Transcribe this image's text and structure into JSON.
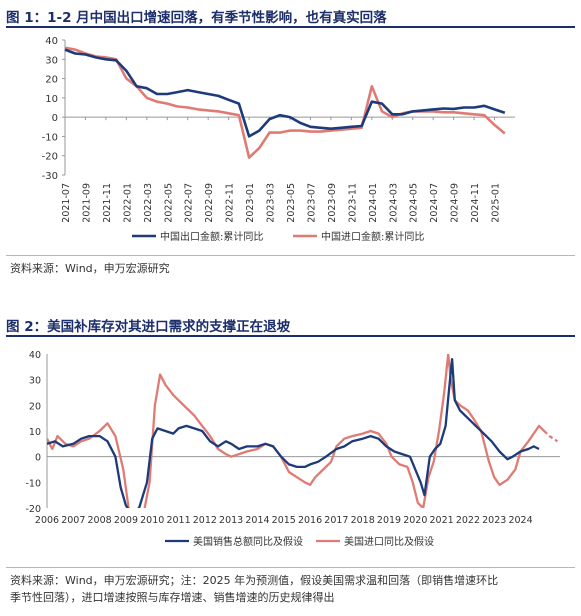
{
  "figure1": {
    "title": "图 1：1-2 月中国出口增速回落，有季节性影响，也有真实回落",
    "source": "资料来源：Wind，申万宏源研究",
    "chart_data": {
      "type": "line",
      "ylim": [
        -30,
        40
      ],
      "yticks": [
        -30,
        -20,
        -10,
        0,
        10,
        20,
        30,
        40
      ],
      "xtick_labels": [
        "2021-07",
        "2021-09",
        "2021-11",
        "2022-01",
        "2022-03",
        "2022-05",
        "2022-07",
        "2022-09",
        "2022-11",
        "2023-01",
        "2023-03",
        "2023-05",
        "2023-07",
        "2023-09",
        "2023-11",
        "2024-01",
        "2024-03",
        "2024-05",
        "2024-07",
        "2024-09",
        "2024-11",
        "2025-01"
      ],
      "legend_position": "bottom",
      "series": [
        {
          "name": "中国出口金额:累计同比",
          "color": "#1d3a7a",
          "points": [
            [
              "2021-07",
              35
            ],
            [
              "2021-08",
              33
            ],
            [
              "2021-09",
              32.5
            ],
            [
              "2021-10",
              31
            ],
            [
              "2021-11",
              30
            ],
            [
              "2021-12",
              29.5
            ],
            [
              "2022-01",
              24
            ],
            [
              "2022-02",
              16
            ],
            [
              "2022-03",
              15
            ],
            [
              "2022-04",
              12
            ],
            [
              "2022-05",
              12
            ],
            [
              "2022-06",
              13
            ],
            [
              "2022-07",
              14
            ],
            [
              "2022-08",
              13
            ],
            [
              "2022-09",
              12
            ],
            [
              "2022-10",
              11
            ],
            [
              "2022-11",
              9
            ],
            [
              "2022-12",
              7
            ],
            [
              "2023-01",
              -10
            ],
            [
              "2023-02",
              -7
            ],
            [
              "2023-03",
              -1
            ],
            [
              "2023-04",
              1
            ],
            [
              "2023-05",
              0
            ],
            [
              "2023-06",
              -3
            ],
            [
              "2023-07",
              -5
            ],
            [
              "2023-08",
              -5.5
            ],
            [
              "2023-09",
              -6
            ],
            [
              "2023-10",
              -5.5
            ],
            [
              "2023-11",
              -5
            ],
            [
              "2023-12",
              -4.6
            ],
            [
              "2024-01",
              8
            ],
            [
              "2024-02",
              7
            ],
            [
              "2024-03",
              1.5
            ],
            [
              "2024-04",
              1.5
            ],
            [
              "2024-05",
              3
            ],
            [
              "2024-06",
              3.5
            ],
            [
              "2024-07",
              4
            ],
            [
              "2024-08",
              4.5
            ],
            [
              "2024-09",
              4.3
            ],
            [
              "2024-10",
              5
            ],
            [
              "2024-11",
              5
            ],
            [
              "2024-12",
              5.9
            ],
            [
              "2025-01",
              4
            ],
            [
              "2025-02",
              2.3
            ]
          ]
        },
        {
          "name": "中国进口金额:累计同比",
          "color": "#e07b74",
          "points": [
            [
              "2021-07",
              36
            ],
            [
              "2021-08",
              35
            ],
            [
              "2021-09",
              33
            ],
            [
              "2021-10",
              31.5
            ],
            [
              "2021-11",
              31
            ],
            [
              "2021-12",
              30
            ],
            [
              "2022-01",
              20
            ],
            [
              "2022-02",
              16
            ],
            [
              "2022-03",
              10
            ],
            [
              "2022-04",
              8
            ],
            [
              "2022-05",
              7
            ],
            [
              "2022-06",
              5.5
            ],
            [
              "2022-07",
              5
            ],
            [
              "2022-08",
              4
            ],
            [
              "2022-09",
              3.5
            ],
            [
              "2022-10",
              3
            ],
            [
              "2022-11",
              2
            ],
            [
              "2022-12",
              1
            ],
            [
              "2023-01",
              -21
            ],
            [
              "2023-02",
              -16
            ],
            [
              "2023-03",
              -8
            ],
            [
              "2023-04",
              -8
            ],
            [
              "2023-05",
              -7
            ],
            [
              "2023-06",
              -7
            ],
            [
              "2023-07",
              -7.5
            ],
            [
              "2023-08",
              -7.5
            ],
            [
              "2023-09",
              -7
            ],
            [
              "2023-10",
              -6.5
            ],
            [
              "2023-11",
              -6
            ],
            [
              "2023-12",
              -5.5
            ],
            [
              "2024-01",
              16
            ],
            [
              "2024-02",
              3
            ],
            [
              "2024-03",
              0
            ],
            [
              "2024-04",
              2
            ],
            [
              "2024-05",
              3
            ],
            [
              "2024-06",
              3
            ],
            [
              "2024-07",
              3
            ],
            [
              "2024-08",
              2.5
            ],
            [
              "2024-09",
              2.5
            ],
            [
              "2024-10",
              2
            ],
            [
              "2024-11",
              1.5
            ],
            [
              "2024-12",
              1
            ],
            [
              "2025-01",
              -4
            ],
            [
              "2025-02",
              -8.5
            ]
          ]
        }
      ]
    }
  },
  "figure2": {
    "title": "图 2：美国补库存对其进口需求的支撑正在退坡",
    "source_line1": "资料来源：Wind，申万宏源研究；注：2025 年为预测值，假设美国需求温和回落（即销售增速环比",
    "source_line2": "季节性回落），进口增速按照与库存增速、销售增速的历史规律得出",
    "chart_data": {
      "type": "line",
      "ylim": [
        -20,
        40
      ],
      "xlim": [
        2006,
        2025.5
      ],
      "yticks": [
        -20,
        -10,
        0,
        10,
        20,
        30,
        40
      ],
      "xtick_labels": [
        "2006",
        "2007",
        "2008",
        "2009",
        "2010",
        "2011",
        "2012",
        "2013",
        "2014",
        "2015",
        "2016",
        "2017",
        "2018",
        "2019",
        "2020",
        "2021",
        "2022",
        "2023",
        "2024"
      ],
      "legend_position": "bottom",
      "series": [
        {
          "name": "美国销售总额同比及假设",
          "color": "#1d3a7a",
          "points": [
            [
              2006.0,
              5
            ],
            [
              2006.3,
              6
            ],
            [
              2006.6,
              4
            ],
            [
              2007.0,
              5
            ],
            [
              2007.3,
              7
            ],
            [
              2007.6,
              8
            ],
            [
              2008.0,
              8
            ],
            [
              2008.3,
              6
            ],
            [
              2008.6,
              0
            ],
            [
              2008.8,
              -12
            ],
            [
              2009.0,
              -19
            ],
            [
              2009.2,
              -22
            ],
            [
              2009.5,
              -20
            ],
            [
              2009.8,
              -10
            ],
            [
              2010.0,
              7
            ],
            [
              2010.2,
              11
            ],
            [
              2010.5,
              10
            ],
            [
              2010.8,
              9
            ],
            [
              2011.0,
              11
            ],
            [
              2011.3,
              12
            ],
            [
              2011.6,
              11
            ],
            [
              2011.9,
              10
            ],
            [
              2012.2,
              6
            ],
            [
              2012.5,
              4
            ],
            [
              2012.8,
              6
            ],
            [
              2013.0,
              5
            ],
            [
              2013.3,
              3
            ],
            [
              2013.6,
              4
            ],
            [
              2014.0,
              4
            ],
            [
              2014.3,
              5
            ],
            [
              2014.6,
              4
            ],
            [
              2014.9,
              0
            ],
            [
              2015.2,
              -3
            ],
            [
              2015.5,
              -4
            ],
            [
              2015.8,
              -4
            ],
            [
              2016.0,
              -3
            ],
            [
              2016.3,
              -2
            ],
            [
              2016.6,
              0
            ],
            [
              2017.0,
              3
            ],
            [
              2017.3,
              4
            ],
            [
              2017.6,
              6
            ],
            [
              2018.0,
              7
            ],
            [
              2018.3,
              8
            ],
            [
              2018.6,
              7
            ],
            [
              2018.9,
              4
            ],
            [
              2019.2,
              2
            ],
            [
              2019.5,
              1
            ],
            [
              2019.8,
              0
            ],
            [
              2020.2,
              -10
            ],
            [
              2020.35,
              -15
            ],
            [
              2020.55,
              0
            ],
            [
              2020.75,
              3
            ],
            [
              2020.95,
              5
            ],
            [
              2021.15,
              12
            ],
            [
              2021.3,
              28
            ],
            [
              2021.4,
              38
            ],
            [
              2021.5,
              22
            ],
            [
              2021.7,
              18
            ],
            [
              2022.0,
              15
            ],
            [
              2022.3,
              12
            ],
            [
              2022.6,
              9
            ],
            [
              2022.9,
              6
            ],
            [
              2023.2,
              2
            ],
            [
              2023.5,
              -1
            ],
            [
              2023.7,
              0
            ],
            [
              2024.0,
              2
            ],
            [
              2024.3,
              3
            ],
            [
              2024.5,
              4
            ],
            [
              2024.7,
              3
            ]
          ]
        },
        {
          "name": "美国进口同比及假设",
          "color": "#e07b74",
          "points": [
            [
              2006.0,
              7
            ],
            [
              2006.2,
              3
            ],
            [
              2006.4,
              8
            ],
            [
              2006.7,
              5
            ],
            [
              2007.0,
              4
            ],
            [
              2007.3,
              6
            ],
            [
              2007.6,
              7
            ],
            [
              2008.0,
              10
            ],
            [
              2008.3,
              13
            ],
            [
              2008.6,
              8
            ],
            [
              2008.9,
              -5
            ],
            [
              2009.1,
              -20
            ],
            [
              2009.3,
              -28
            ],
            [
              2009.6,
              -26
            ],
            [
              2009.9,
              -10
            ],
            [
              2010.1,
              20
            ],
            [
              2010.3,
              32
            ],
            [
              2010.5,
              28
            ],
            [
              2010.8,
              24
            ],
            [
              2011.0,
              22
            ],
            [
              2011.3,
              19
            ],
            [
              2011.6,
              16
            ],
            [
              2011.9,
              12
            ],
            [
              2012.2,
              8
            ],
            [
              2012.5,
              3
            ],
            [
              2012.8,
              1
            ],
            [
              2013.0,
              0
            ],
            [
              2013.3,
              1
            ],
            [
              2013.6,
              2
            ],
            [
              2014.0,
              3
            ],
            [
              2014.3,
              5
            ],
            [
              2014.6,
              4
            ],
            [
              2014.9,
              0
            ],
            [
              2015.2,
              -6
            ],
            [
              2015.5,
              -8
            ],
            [
              2015.8,
              -10
            ],
            [
              2016.0,
              -11
            ],
            [
              2016.2,
              -8
            ],
            [
              2016.5,
              -5
            ],
            [
              2016.8,
              -2
            ],
            [
              2017.0,
              4
            ],
            [
              2017.3,
              7
            ],
            [
              2017.6,
              8
            ],
            [
              2018.0,
              9
            ],
            [
              2018.3,
              10
            ],
            [
              2018.6,
              9
            ],
            [
              2018.9,
              5
            ],
            [
              2019.1,
              0
            ],
            [
              2019.4,
              -3
            ],
            [
              2019.7,
              -4
            ],
            [
              2019.9,
              -10
            ],
            [
              2020.1,
              -18
            ],
            [
              2020.3,
              -20
            ],
            [
              2020.5,
              -8
            ],
            [
              2020.7,
              -2
            ],
            [
              2020.9,
              10
            ],
            [
              2021.1,
              25
            ],
            [
              2021.25,
              40
            ],
            [
              2021.35,
              30
            ],
            [
              2021.5,
              22
            ],
            [
              2021.7,
              20
            ],
            [
              2022.0,
              18
            ],
            [
              2022.2,
              15
            ],
            [
              2022.5,
              10
            ],
            [
              2022.8,
              -2
            ],
            [
              2023.0,
              -8
            ],
            [
              2023.2,
              -11
            ],
            [
              2023.5,
              -9
            ],
            [
              2023.8,
              -5
            ],
            [
              2024.0,
              2
            ],
            [
              2024.3,
              6
            ],
            [
              2024.5,
              9
            ],
            [
              2024.7,
              12
            ],
            [
              2024.9,
              10
            ],
            [
              2025.1,
              8
            ],
            [
              2025.4,
              6
            ]
          ]
        }
      ]
    }
  }
}
